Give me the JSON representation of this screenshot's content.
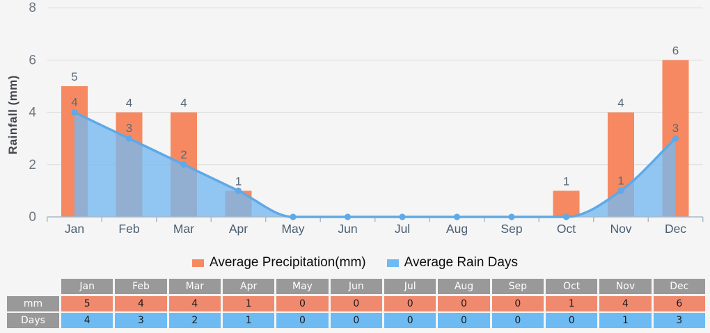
{
  "chart": {
    "y_axis_title": "Rainfall (mm)",
    "y_ticks": [
      0,
      2,
      4,
      6,
      8
    ],
    "colors": {
      "bar": "#f68961",
      "line": "#5fa9e6",
      "area_fill": "rgba(118,185,241,0.78)",
      "axis_line": "#a8bacd",
      "gridline": "#dbdbdb",
      "tick_label": "#6e7882",
      "month_label": "#4a5d70",
      "value_label": "#5a6978",
      "background": "#f5f5f5"
    }
  },
  "chart_data": {
    "type": "combo-bar-smooth-area-line",
    "categories": [
      "Jan",
      "Feb",
      "Mar",
      "Apr",
      "May",
      "Jun",
      "Jul",
      "Aug",
      "Sep",
      "Oct",
      "Nov",
      "Dec"
    ],
    "series": [
      {
        "name": "Average Precipitation(mm)",
        "type": "bar",
        "color": "#f68961",
        "values": [
          5,
          4,
          4,
          1,
          0,
          0,
          0,
          0,
          0,
          1,
          4,
          6
        ]
      },
      {
        "name": "Average Rain Days",
        "type": "area",
        "color": "#5fa9e6",
        "fill": "rgba(118,185,241,0.78)",
        "values": [
          4,
          3,
          2,
          1,
          0,
          0,
          0,
          0,
          0,
          0,
          1,
          3
        ]
      }
    ],
    "title": "",
    "xlabel": "",
    "ylabel": "Rainfall (mm)",
    "ylim": [
      0,
      8
    ],
    "grid": true,
    "legend_position": "bottom",
    "value_labels_shown": true
  },
  "table": {
    "columns": [
      "Jan",
      "Feb",
      "Mar",
      "Apr",
      "May",
      "Jun",
      "Jul",
      "Aug",
      "Sep",
      "Oct",
      "Nov",
      "Dec"
    ],
    "rows": [
      {
        "label": "mm",
        "values": [
          5,
          4,
          4,
          1,
          0,
          0,
          0,
          0,
          0,
          1,
          4,
          6
        ]
      },
      {
        "label": "Days",
        "values": [
          4,
          3,
          2,
          1,
          0,
          0,
          0,
          0,
          0,
          0,
          1,
          3
        ]
      }
    ],
    "colors": {
      "header_bg": "#999999",
      "header_text": "#ffffff",
      "mm_bg": "#f08a6e",
      "days_bg": "#6dbbf2"
    }
  }
}
